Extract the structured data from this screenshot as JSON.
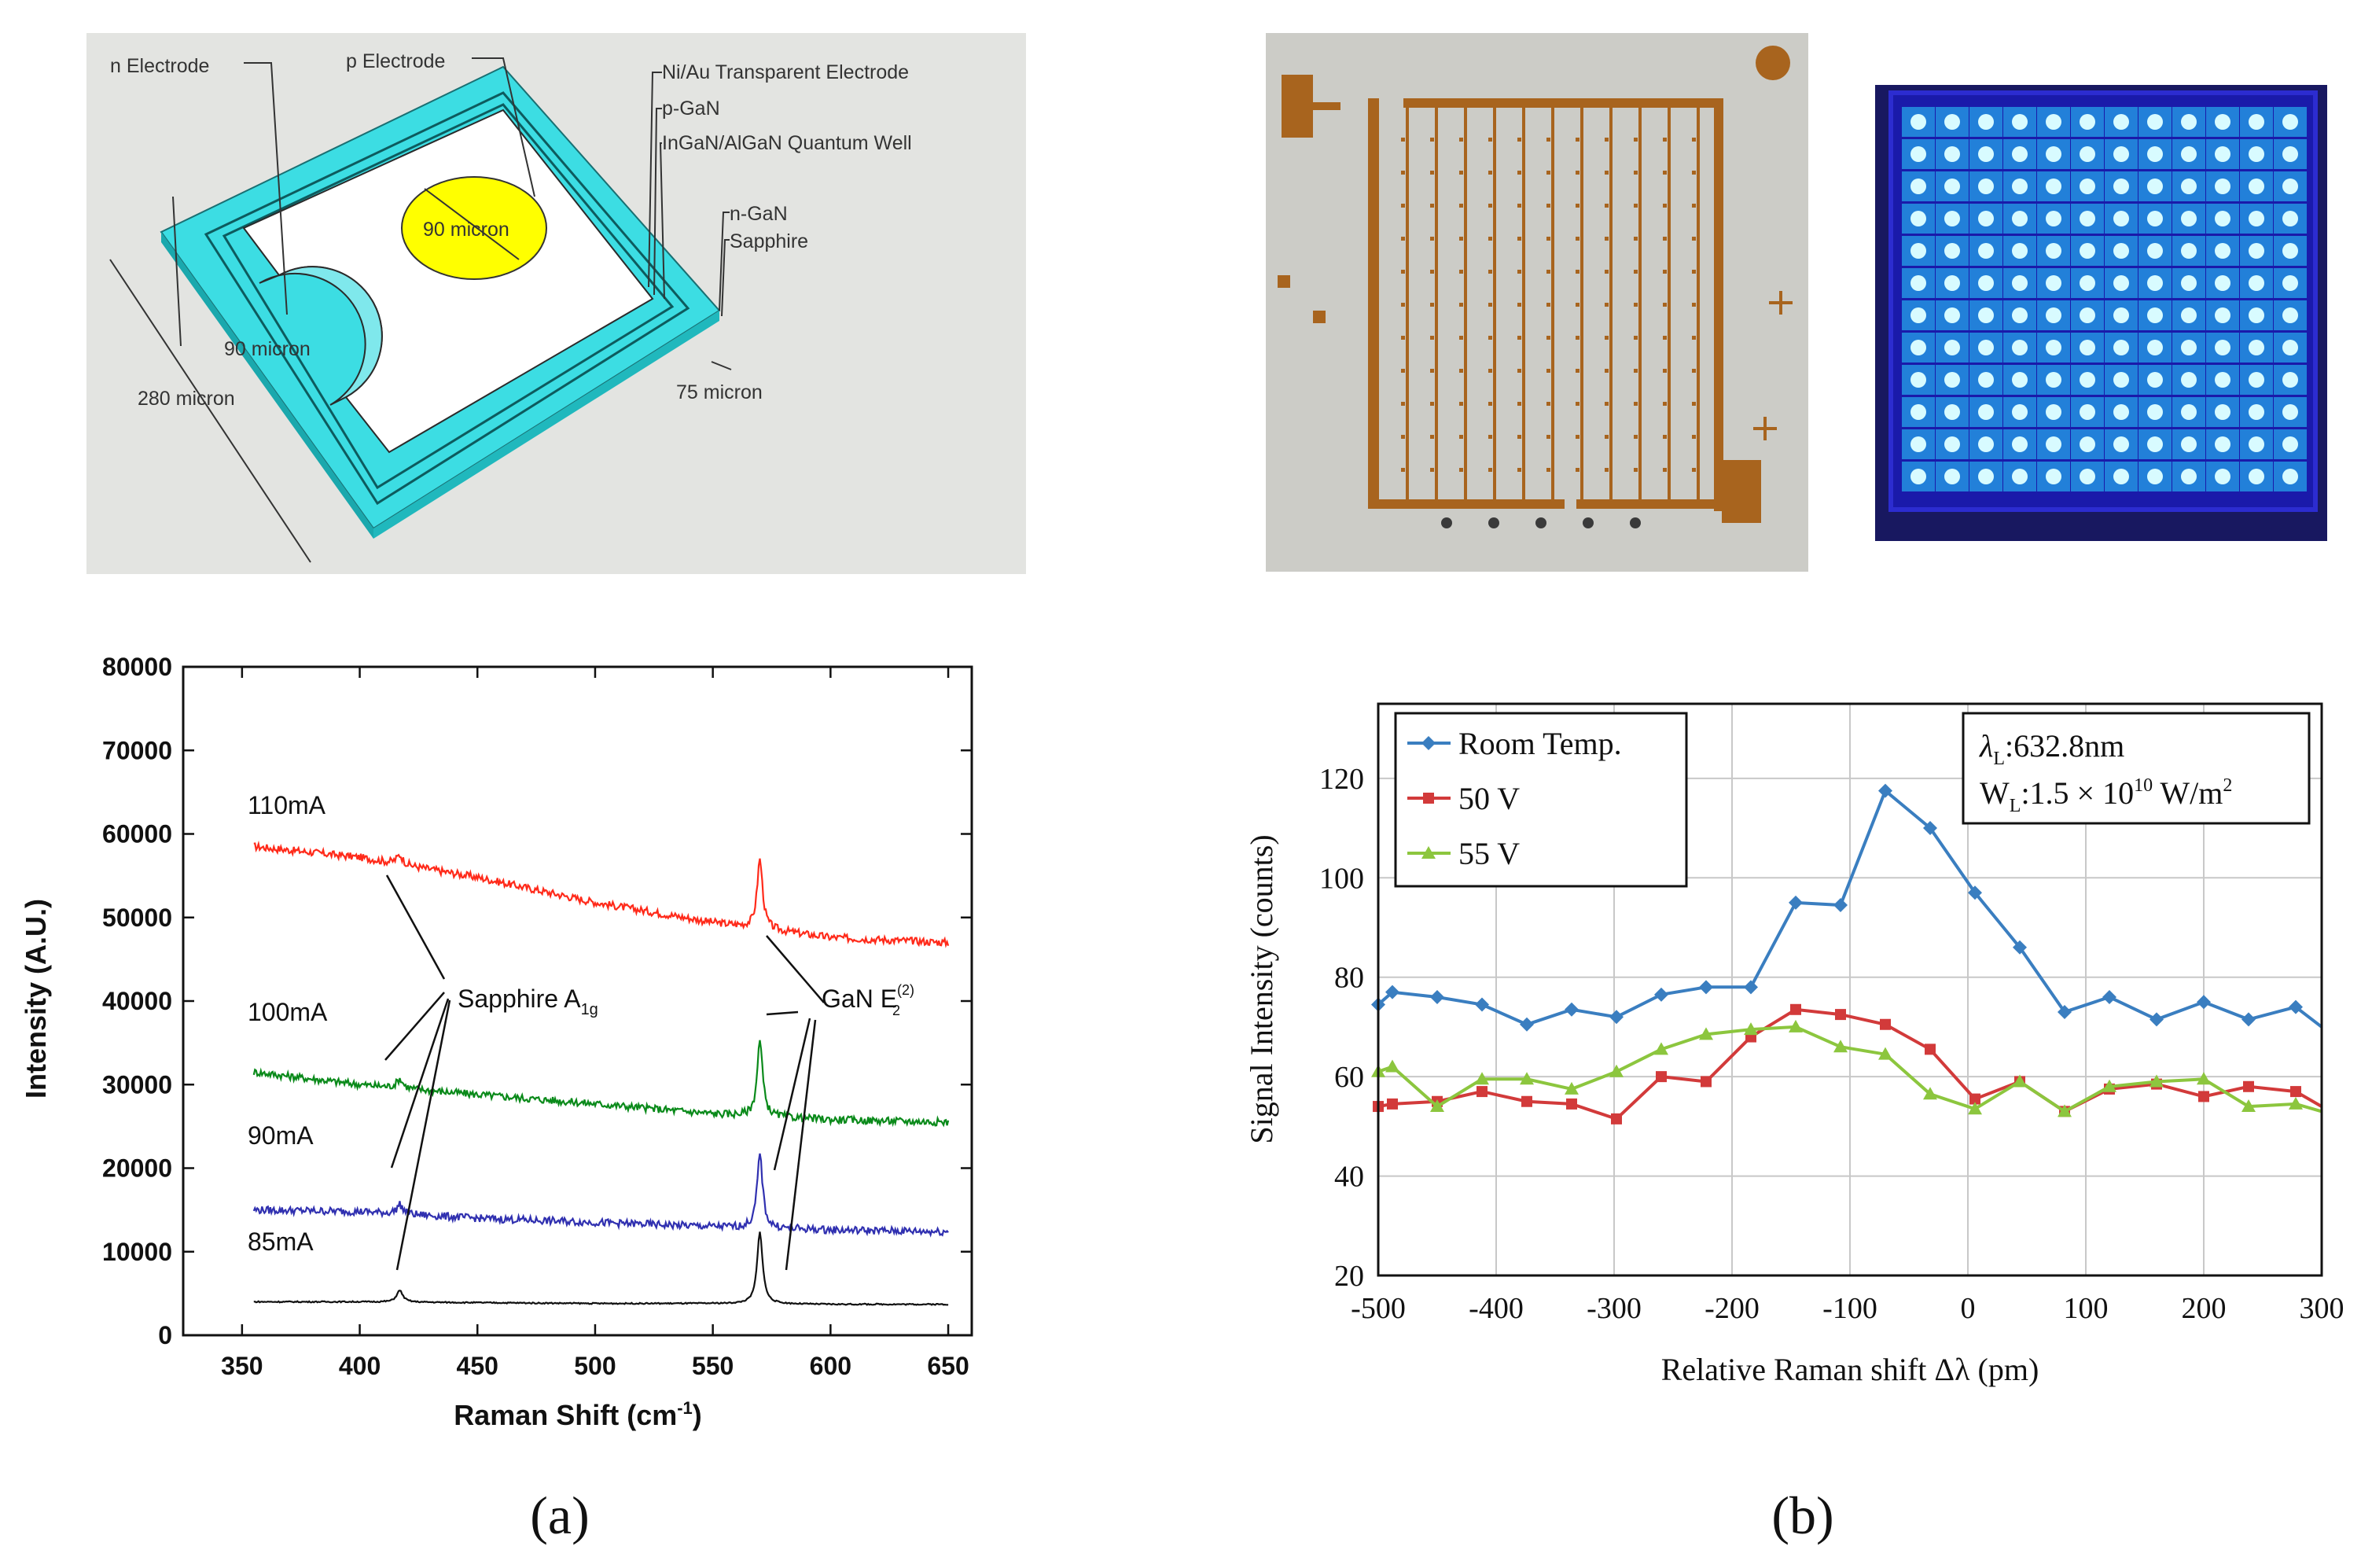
{
  "diagram": {
    "labels": {
      "n_electrode": "n Electrode",
      "p_electrode": "p Electrode",
      "transparent": "Ni/Au Transparent Electrode",
      "pgan": "p-GaN",
      "qw": "InGaN/AlGaN Quantum Well",
      "ngan": "n-GaN",
      "sapphire": "Sapphire",
      "circle_size": "90 micron",
      "n_size": "90 micron",
      "die_size": "280 micron",
      "edge": "75 micron"
    },
    "colors": {
      "background": "#e3e4e1",
      "substrate": "#3cdde3",
      "mesa": "#ffffff",
      "p_electrode": "#ffff00"
    }
  },
  "photo_pcb": {
    "name": "LED array PCB photo",
    "colors": {
      "board": "#ccccc7",
      "trace": "#a8641e"
    }
  },
  "photo_lit": {
    "name": "lit LED array photo",
    "colors": {
      "frame": "#1a1aaa",
      "led": "#29d6ff"
    }
  },
  "panel_labels": {
    "a": "(a)",
    "b": "(b)"
  },
  "chart_data": [
    {
      "type": "line",
      "title": "",
      "xlabel_base": "Raman Shift (cm",
      "xlabel_sup": "-1",
      "xlabel_end": ")",
      "ylabel": "Intensity (A.U.)",
      "xlim": [
        325,
        660
      ],
      "ylim": [
        0,
        80000
      ],
      "xticks": [
        "350",
        "400",
        "450",
        "500",
        "550",
        "600",
        "650"
      ],
      "yticks": [
        "0",
        "10000",
        "20000",
        "30000",
        "40000",
        "50000",
        "60000",
        "70000",
        "80000"
      ],
      "series": [
        {
          "name": "110mA",
          "color": "#ff2a1a",
          "base": [
            [
              355,
              58500
            ],
            [
              400,
              57200
            ],
            [
              450,
              54800
            ],
            [
              500,
              51800
            ],
            [
              550,
              49400
            ],
            [
              600,
              47600
            ],
            [
              650,
              47000
            ]
          ],
          "peak": 8300
        },
        {
          "name": "100mA",
          "color": "#0a8a1a",
          "base": [
            [
              355,
              31500
            ],
            [
              400,
              30000
            ],
            [
              450,
              28800
            ],
            [
              500,
              27700
            ],
            [
              550,
              26500
            ],
            [
              600,
              25800
            ],
            [
              650,
              25500
            ]
          ],
          "peak": 9000
        },
        {
          "name": "90mA",
          "color": "#3030b0",
          "base": [
            [
              355,
              15000
            ],
            [
              400,
              14800
            ],
            [
              450,
              14000
            ],
            [
              500,
              13500
            ],
            [
              550,
              13000
            ],
            [
              600,
              12600
            ],
            [
              650,
              12400
            ]
          ],
          "peak": 8800
        },
        {
          "name": "85mA",
          "color": "#111111",
          "base": [
            [
              355,
              4000
            ],
            [
              400,
              4000
            ],
            [
              450,
              3900
            ],
            [
              500,
              3800
            ],
            [
              550,
              3800
            ],
            [
              600,
              3700
            ],
            [
              650,
              3700
            ]
          ],
          "peak": 8600
        }
      ],
      "peak_x": 570,
      "sapphire_x": 417,
      "annotations": {
        "sapphire_base": "Sapphire A",
        "sapphire_sub": "1g",
        "gan_base": "GaN E",
        "gan_sup": "(2)",
        "gan_sub": "2"
      }
    },
    {
      "type": "line",
      "title": "",
      "xlabel": "Relative Raman shift  Δλ  (pm)",
      "ylabel": "Signal Intensity  (counts)",
      "xlim": [
        -500,
        300
      ],
      "ylim": [
        20,
        135
      ],
      "xticks": [
        "-500",
        "-400",
        "-300",
        "-200",
        "-100",
        "0",
        "100",
        "200",
        "300"
      ],
      "yticks": [
        "20",
        "40",
        "60",
        "80",
        "100",
        "120"
      ],
      "x": [
        -500,
        -488,
        -450,
        -412,
        -374,
        -336,
        -298,
        -260,
        -222,
        -184,
        -146,
        -108,
        -70,
        -32,
        6,
        44,
        82,
        120,
        160,
        200,
        238,
        278,
        300
      ],
      "series": [
        {
          "name": "Room Temp.",
          "color": "#3a7ec0",
          "marker": "diamond",
          "values": [
            74.5,
            77,
            76,
            74.5,
            70.5,
            73.5,
            72,
            76.5,
            78,
            78,
            95,
            94.5,
            117.5,
            110,
            97,
            86,
            73,
            76,
            71.5,
            75,
            71.5,
            74,
            70
          ]
        },
        {
          "name": "50 V",
          "color": "#d23a3a",
          "marker": "square",
          "values": [
            54,
            54.5,
            55,
            57,
            55,
            54.5,
            51.5,
            60,
            59,
            68,
            73.5,
            72.5,
            70.5,
            65.5,
            55.5,
            59,
            53,
            57.5,
            58.5,
            56,
            58,
            57,
            54
          ]
        },
        {
          "name": "55 V",
          "color": "#8cc63e",
          "marker": "triangle",
          "values": [
            61,
            62,
            54,
            59.5,
            59.5,
            57.5,
            61,
            65.5,
            68.5,
            69.5,
            70,
            66,
            64.5,
            56.5,
            53.5,
            59,
            53,
            58,
            59,
            59.5,
            54,
            54.5,
            53
          ]
        }
      ],
      "legend": {
        "position": "top-left"
      },
      "annotation": {
        "line1_sym": "λ",
        "line1_sub": "L",
        "line1_text": ":632.8nm",
        "line2_sym": "W",
        "line2_sub": "L",
        "line2_text": ":1.5 × 10",
        "line2_exp": "10",
        "line2_unit": " W/m",
        "line2_unit_exp": "2"
      }
    }
  ]
}
